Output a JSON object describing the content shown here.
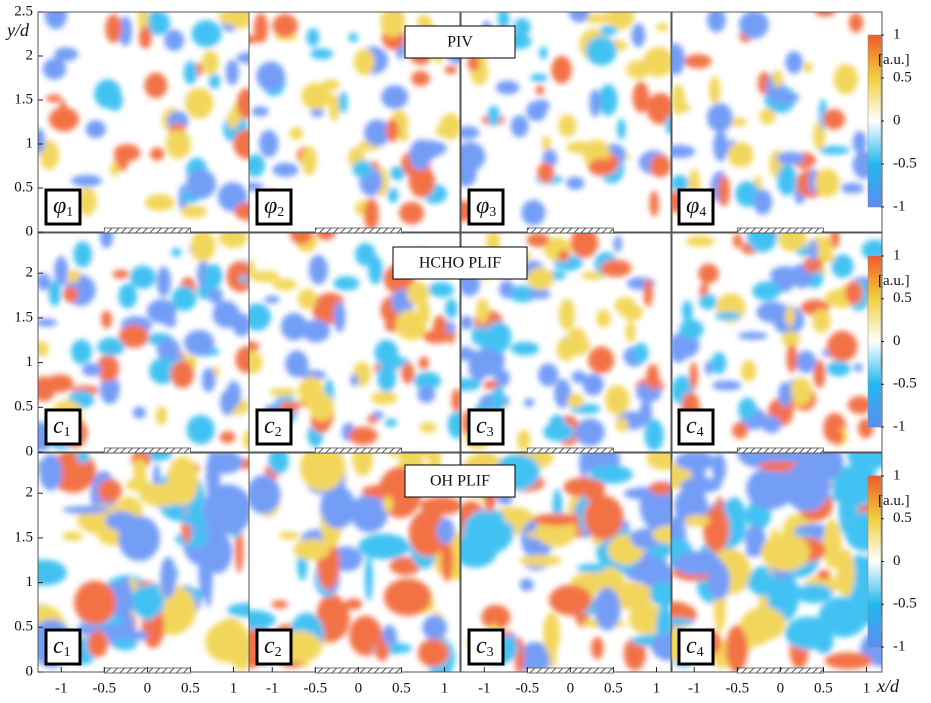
{
  "chart_data": [
    {
      "type": "heatmap",
      "title": "PIV",
      "ylabel": "y/d",
      "ylim": [
        0,
        2.5
      ],
      "yticks": [
        0,
        0.5,
        1,
        1.5,
        2,
        2.5
      ],
      "panels": [
        {
          "symbol": "φ",
          "sub": "1"
        },
        {
          "symbol": "φ",
          "sub": "2"
        },
        {
          "symbol": "φ",
          "sub": "3"
        },
        {
          "symbol": "φ",
          "sub": "4"
        }
      ],
      "colorbar": {
        "label": "[a.u.]",
        "clim": [
          -1,
          1
        ],
        "ticks": [
          1,
          0.5,
          0,
          -0.5,
          -1
        ]
      },
      "colormap": [
        "#5b8cf5",
        "#22b8f0",
        "#ffffff",
        "#f0d040",
        "#f05a28"
      ]
    },
    {
      "type": "heatmap",
      "title": "HCHO PLIF",
      "ylim": [
        0,
        2.45
      ],
      "yticks": [
        0,
        0.5,
        1,
        1.5,
        2
      ],
      "panels": [
        {
          "symbol": "c",
          "sub": "1"
        },
        {
          "symbol": "c",
          "sub": "2"
        },
        {
          "symbol": "c",
          "sub": "3"
        },
        {
          "symbol": "c",
          "sub": "4"
        }
      ],
      "colorbar": {
        "label": "[a.u.]",
        "clim": [
          -1,
          1
        ],
        "ticks": [
          1,
          0.5,
          0,
          -0.5,
          -1
        ]
      },
      "colormap": [
        "#5b8cf5",
        "#22b8f0",
        "#ffffff",
        "#f0d040",
        "#f05a28"
      ]
    },
    {
      "type": "heatmap",
      "title": "OH PLIF",
      "xlabel": "x/d",
      "ylim": [
        0,
        2.45
      ],
      "yticks": [
        0,
        0.5,
        1,
        1.5,
        2
      ],
      "xlim": [
        -1.27,
        1.18
      ],
      "xticks": [
        -1,
        -0.5,
        0,
        0.5,
        1
      ],
      "panels": [
        {
          "symbol": "c",
          "sub": "1"
        },
        {
          "symbol": "c",
          "sub": "2"
        },
        {
          "symbol": "c",
          "sub": "3"
        },
        {
          "symbol": "c",
          "sub": "4"
        }
      ],
      "colorbar": {
        "label": "[a.u.]",
        "clim": [
          -1,
          1
        ],
        "ticks": [
          1,
          0.5,
          0,
          -0.5,
          -1
        ]
      },
      "colormap": [
        "#5b8cf5",
        "#22b8f0",
        "#ffffff",
        "#f0d040",
        "#f05a28"
      ]
    }
  ]
}
